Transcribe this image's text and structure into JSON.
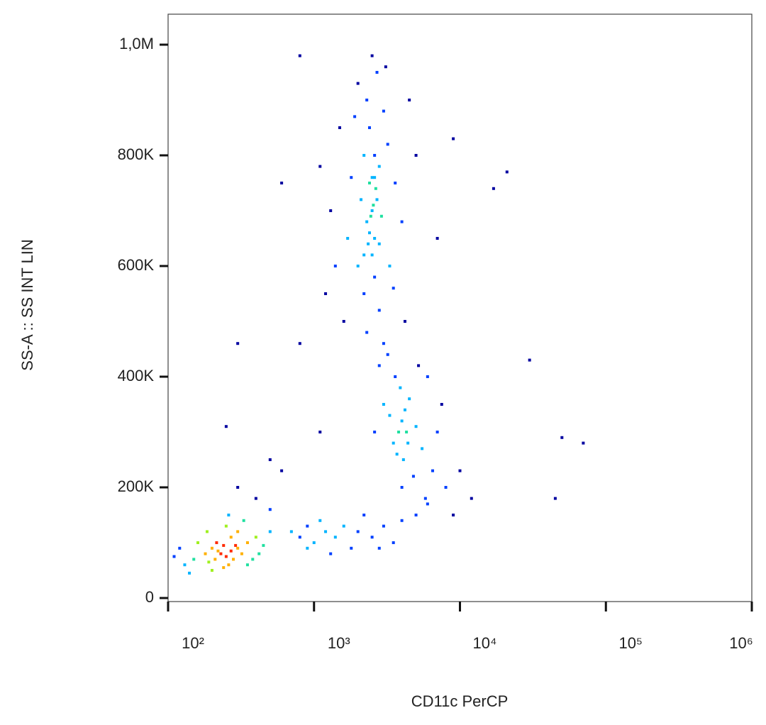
{
  "chart_data": {
    "type": "scatter",
    "x_label": "CD11c PerCP",
    "y_label": "SS-A :: SS INT LIN",
    "xscale": "log",
    "xlim": [
      100,
      1000000
    ],
    "xticks": [
      {
        "value": 100,
        "label": "10²"
      },
      {
        "value": 1000,
        "label": "10³"
      },
      {
        "value": 10000,
        "label": "10⁴"
      },
      {
        "value": 100000,
        "label": "10⁵"
      },
      {
        "value": 1000000,
        "label": "10⁶"
      }
    ],
    "ylim": [
      -6400,
      1055100
    ],
    "yticks": [
      0,
      {
        "value": 200000,
        "label": "200K"
      },
      {
        "value": 400000,
        "label": "400K"
      },
      {
        "value": 600000,
        "label": "600K"
      },
      {
        "value": 800000,
        "label": "800K"
      },
      {
        "value": 1000000,
        "label": "1,0M"
      }
    ],
    "colorscale": [
      "#0000a0",
      "#0040ff",
      "#00b4ff",
      "#20e0a0",
      "#a0f020",
      "#ffb000",
      "#ff2a00"
    ],
    "x": [
      230,
      250,
      270,
      210,
      300,
      190,
      240,
      280,
      220,
      260,
      320,
      200,
      350,
      180,
      150,
      130,
      120,
      400,
      450,
      380,
      160,
      300,
      250,
      200,
      350,
      140,
      110,
      500,
      420,
      330,
      270,
      240,
      290,
      215,
      185,
      260,
      400,
      300,
      500,
      600,
      700,
      800,
      900,
      1000,
      1200,
      1400,
      1600,
      1800,
      2000,
      2500,
      3000,
      3500,
      4000,
      5000,
      1100,
      900,
      1300,
      2200,
      2800,
      6000,
      2500,
      2300,
      2700,
      2400,
      2600,
      2200,
      2800,
      2500,
      2400,
      2600,
      2100,
      2900,
      2300,
      2700,
      2500,
      2000,
      3000,
      3200,
      1800,
      1700,
      3300,
      2200,
      2800,
      1600,
      3500,
      1500,
      3600,
      1400,
      4000,
      1900,
      2600,
      2450,
      2550,
      2350,
      2650,
      2500,
      2400,
      2600,
      2200,
      2800,
      2300,
      3000,
      1300,
      4500,
      1200,
      5000,
      1100,
      4200,
      2000,
      3100,
      4000,
      3800,
      4200,
      3500,
      4500,
      3700,
      4300,
      3900,
      4100,
      3300,
      5000,
      3000,
      5500,
      6000,
      2800,
      6500,
      7000,
      8000,
      9000,
      5200,
      4800,
      3600,
      2600,
      7500,
      10000,
      12000,
      4000,
      3200,
      5800,
      4400,
      800,
      21000,
      17000,
      30000,
      50000,
      70000,
      45000,
      600,
      250,
      300,
      800,
      1100,
      500,
      7000,
      9000
    ],
    "values": [
      80000,
      75000,
      85000,
      70000,
      90000,
      65000,
      95000,
      70000,
      85000,
      60000,
      80000,
      90000,
      100000,
      80000,
      70000,
      60000,
      90000,
      110000,
      95000,
      70000,
      100000,
      120000,
      130000,
      50000,
      60000,
      45000,
      75000,
      120000,
      80000,
      140000,
      110000,
      55000,
      95000,
      100000,
      120000,
      150000,
      180000,
      200000,
      160000,
      230000,
      120000,
      110000,
      130000,
      100000,
      120000,
      110000,
      130000,
      90000,
      120000,
      110000,
      130000,
      100000,
      140000,
      150000,
      140000,
      90000,
      80000,
      150000,
      90000,
      170000,
      700000,
      680000,
      720000,
      750000,
      650000,
      800000,
      780000,
      620000,
      850000,
      580000,
      720000,
      690000,
      900000,
      950000,
      980000,
      930000,
      880000,
      820000,
      760000,
      650000,
      600000,
      550000,
      520000,
      500000,
      560000,
      850000,
      750000,
      600000,
      680000,
      870000,
      760000,
      690000,
      710000,
      640000,
      740000,
      760000,
      660000,
      800000,
      620000,
      640000,
      480000,
      460000,
      700000,
      900000,
      550000,
      800000,
      780000,
      500000,
      600000,
      960000,
      320000,
      300000,
      340000,
      280000,
      360000,
      260000,
      300000,
      380000,
      250000,
      330000,
      310000,
      350000,
      270000,
      400000,
      420000,
      230000,
      300000,
      200000,
      150000,
      420000,
      220000,
      400000,
      300000,
      350000,
      230000,
      180000,
      200000,
      440000,
      180000,
      280000,
      980000,
      770000,
      740000,
      430000,
      290000,
      280000,
      180000,
      750000,
      310000,
      460000,
      460000,
      300000,
      250000,
      650000,
      830000
    ]
  }
}
